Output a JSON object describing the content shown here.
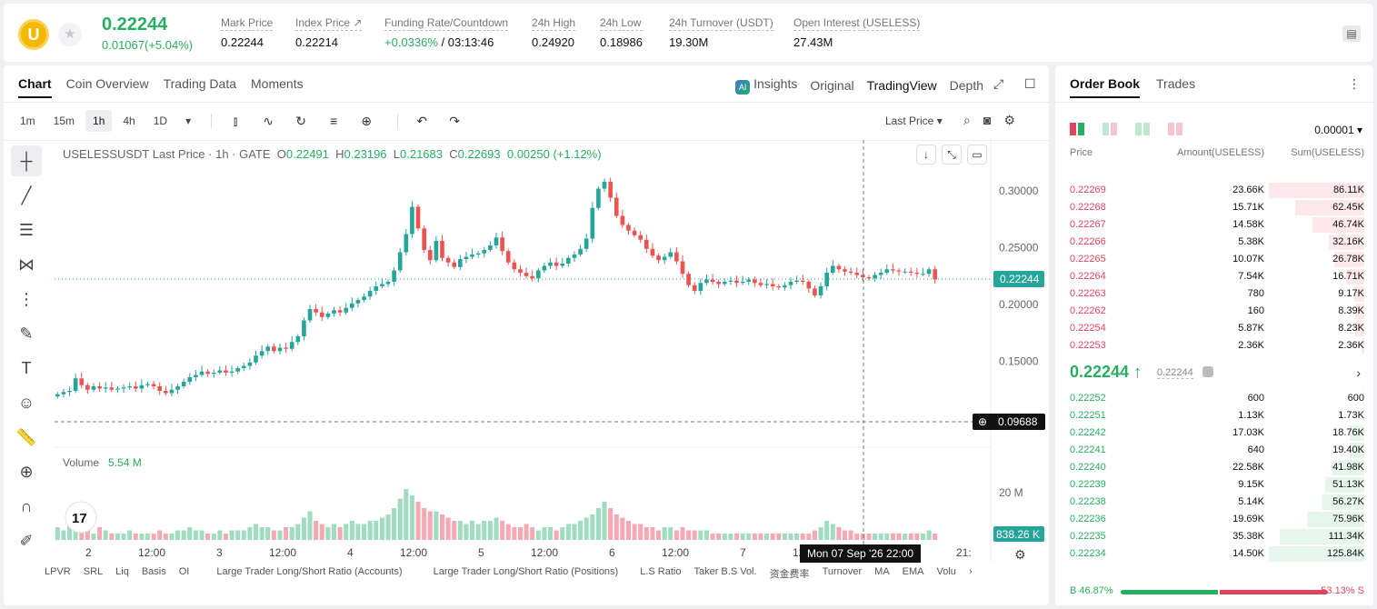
{
  "header": {
    "coin_letter": "U",
    "last_price": "0.22244",
    "change": "0.01067(+5.04%)",
    "stats": [
      {
        "label": "Mark Price",
        "value": "0.22244"
      },
      {
        "label": "Index Price ↗",
        "value": "0.22214"
      },
      {
        "label": "Funding Rate/Countdown",
        "value_green": "+0.0336%",
        "value": " / 03:13:46"
      },
      {
        "label": "24h High",
        "value": "0.24920"
      },
      {
        "label": "24h Low",
        "value": "0.18986"
      },
      {
        "label": "24h Turnover (USDT)",
        "value": "19.30M"
      },
      {
        "label": "Open Interest (USELESS)",
        "value": "27.43M"
      }
    ]
  },
  "chart_panel": {
    "tabs": [
      "Chart",
      "Coin Overview",
      "Trading Data",
      "Moments"
    ],
    "views": {
      "insights": "Insights",
      "original": "Original",
      "tradingview": "TradingView",
      "depth": "Depth"
    },
    "timeframes": [
      "1m",
      "15m",
      "1h",
      "4h",
      "1D"
    ],
    "price_type": "Last Price ▾",
    "legend": {
      "symbol": "USELESSUSDT Last Price · 1h · GATE",
      "o": "0.22491",
      "h": "0.23196",
      "l": "0.21683",
      "c": "0.22693",
      "chg": "0.00250 (+1.12%)"
    },
    "volume_label": "Volume",
    "volume_value": "5.54 M",
    "crosshair_time": "Mon 07 Sep '26   22:00",
    "indicators": [
      "LPVR",
      "SRL",
      "Liq",
      "Basis",
      "OI",
      "Large Trader Long/Short Ratio (Accounts)",
      "Large Trader Long/Short Ratio (Positions)",
      "L.S Ratio",
      "Taker B.S Vol.",
      "资金费率",
      "Turnover",
      "MA",
      "EMA",
      "Volu"
    ]
  },
  "chart_data": {
    "type": "candlestick",
    "title": "USELESSUSDT Last Price · 1h · GATE",
    "y_ticks": [
      "0.30000",
      "0.25000",
      "0.20000",
      "0.15000"
    ],
    "y_tick_values": [
      0.3,
      0.25,
      0.2,
      0.15
    ],
    "x_ticks": [
      "2",
      "12:00",
      "3",
      "12:00",
      "4",
      "12:00",
      "5",
      "12:00",
      "6",
      "12:00",
      "7",
      "12:00",
      "21:"
    ],
    "last_price_label": "0.22244",
    "crosshair_price_label": "0.09688",
    "volume_tick": "20 M",
    "volume_last_label": "838.26 K",
    "up_color": "#26a69a",
    "down_color": "#ef5350",
    "candle_close_path": [
      0.121,
      0.123,
      0.124,
      0.135,
      0.129,
      0.125,
      0.128,
      0.126,
      0.127,
      0.125,
      0.126,
      0.127,
      0.128,
      0.126,
      0.129,
      0.13,
      0.128,
      0.124,
      0.122,
      0.125,
      0.128,
      0.132,
      0.136,
      0.138,
      0.141,
      0.139,
      0.14,
      0.142,
      0.14,
      0.141,
      0.144,
      0.146,
      0.149,
      0.155,
      0.159,
      0.163,
      0.159,
      0.162,
      0.161,
      0.167,
      0.172,
      0.186,
      0.196,
      0.193,
      0.189,
      0.192,
      0.195,
      0.193,
      0.197,
      0.201,
      0.204,
      0.207,
      0.212,
      0.216,
      0.218,
      0.22,
      0.23,
      0.246,
      0.262,
      0.286,
      0.267,
      0.248,
      0.239,
      0.256,
      0.241,
      0.237,
      0.233,
      0.24,
      0.242,
      0.244,
      0.245,
      0.248,
      0.252,
      0.259,
      0.247,
      0.237,
      0.231,
      0.228,
      0.225,
      0.223,
      0.23,
      0.234,
      0.237,
      0.234,
      0.236,
      0.241,
      0.244,
      0.249,
      0.258,
      0.285,
      0.302,
      0.308,
      0.294,
      0.278,
      0.27,
      0.265,
      0.261,
      0.257,
      0.249,
      0.243,
      0.239,
      0.242,
      0.246,
      0.238,
      0.227,
      0.217,
      0.212,
      0.219,
      0.222,
      0.22,
      0.218,
      0.22,
      0.221,
      0.219,
      0.22,
      0.222,
      0.219,
      0.217,
      0.218,
      0.216,
      0.215,
      0.217,
      0.22,
      0.221,
      0.22,
      0.214,
      0.208,
      0.216,
      0.228,
      0.234,
      0.231,
      0.229,
      0.228,
      0.226,
      0.224,
      0.223,
      0.226,
      0.228,
      0.231,
      0.23,
      0.229,
      0.229,
      0.228,
      0.227,
      0.227,
      0.231,
      0.222
    ],
    "volume_path_m": [
      4,
      3,
      5,
      4,
      3,
      3,
      2,
      4,
      3,
      2,
      2,
      2,
      3,
      2,
      2,
      2,
      2,
      3,
      2,
      2,
      3,
      3,
      4,
      3,
      3,
      2,
      2,
      3,
      2,
      3,
      3,
      3,
      4,
      5,
      4,
      4,
      3,
      3,
      4,
      4,
      5,
      7,
      9,
      6,
      5,
      4,
      5,
      4,
      5,
      6,
      5,
      5,
      6,
      6,
      7,
      8,
      10,
      13,
      16,
      14,
      12,
      10,
      9,
      9,
      8,
      7,
      6,
      6,
      5,
      6,
      5,
      6,
      6,
      7,
      6,
      5,
      4,
      4,
      5,
      4,
      3,
      4,
      4,
      3,
      4,
      5,
      5,
      6,
      7,
      8,
      10,
      12,
      10,
      8,
      7,
      6,
      5,
      5,
      4,
      4,
      3,
      4,
      4,
      3,
      4,
      3,
      3,
      3,
      3,
      2,
      2,
      2,
      2,
      2,
      2,
      2,
      2,
      2,
      2,
      2,
      2,
      2,
      2,
      2,
      2,
      2,
      3,
      4,
      6,
      5,
      4,
      3,
      3,
      2,
      2,
      2,
      2,
      2,
      2,
      2,
      2,
      2,
      2,
      2,
      2,
      3,
      2
    ]
  },
  "order_book": {
    "tabs": [
      "Order Book",
      "Trades"
    ],
    "precision": "0.00001 ▾",
    "headers": {
      "price": "Price",
      "amount": "Amount(USELESS)",
      "sum": "Sum(USELESS)"
    },
    "asks": [
      {
        "price": "0.22269",
        "amount": "23.66K",
        "sum": "86.11K",
        "depth": 1.0
      },
      {
        "price": "0.22268",
        "amount": "15.71K",
        "sum": "62.45K",
        "depth": 0.725
      },
      {
        "price": "0.22267",
        "amount": "14.58K",
        "sum": "46.74K",
        "depth": 0.543
      },
      {
        "price": "0.22266",
        "amount": "5.38K",
        "sum": "32.16K",
        "depth": 0.373
      },
      {
        "price": "0.22265",
        "amount": "10.07K",
        "sum": "26.78K",
        "depth": 0.311
      },
      {
        "price": "0.22264",
        "amount": "7.54K",
        "sum": "16.71K",
        "depth": 0.194
      },
      {
        "price": "0.22263",
        "amount": "780",
        "sum": "9.17K",
        "depth": 0.106
      },
      {
        "price": "0.22262",
        "amount": "160",
        "sum": "8.39K",
        "depth": 0.097
      },
      {
        "price": "0.22254",
        "amount": "5.87K",
        "sum": "8.23K",
        "depth": 0.096
      },
      {
        "price": "0.22253",
        "amount": "2.36K",
        "sum": "2.36K",
        "depth": 0.027
      }
    ],
    "mid": {
      "price": "0.22244 ↑",
      "mark": "0.22244"
    },
    "bids": [
      {
        "price": "0.22252",
        "amount": "600",
        "sum": "600",
        "depth": 0.005
      },
      {
        "price": "0.22251",
        "amount": "1.13K",
        "sum": "1.73K",
        "depth": 0.014
      },
      {
        "price": "0.22242",
        "amount": "17.03K",
        "sum": "18.76K",
        "depth": 0.149
      },
      {
        "price": "0.22241",
        "amount": "640",
        "sum": "19.40K",
        "depth": 0.154
      },
      {
        "price": "0.22240",
        "amount": "22.58K",
        "sum": "41.98K",
        "depth": 0.334
      },
      {
        "price": "0.22239",
        "amount": "9.15K",
        "sum": "51.13K",
        "depth": 0.406
      },
      {
        "price": "0.22238",
        "amount": "5.14K",
        "sum": "56.27K",
        "depth": 0.447
      },
      {
        "price": "0.22236",
        "amount": "19.69K",
        "sum": "75.96K",
        "depth": 0.604
      },
      {
        "price": "0.22235",
        "amount": "35.38K",
        "sum": "111.34K",
        "depth": 0.885
      },
      {
        "price": "0.22234",
        "amount": "14.50K",
        "sum": "125.84K",
        "depth": 1.0
      }
    ],
    "buy_ratio": "B 46.87%",
    "sell_ratio": "53.13% S",
    "buy_fraction": 0.4687
  }
}
